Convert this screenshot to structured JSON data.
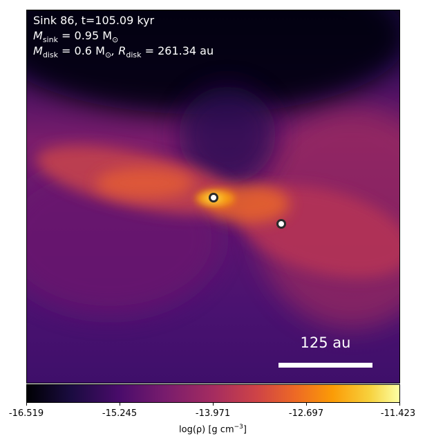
{
  "header": {
    "line1": "Sink 86, t=105.09 kyr",
    "m_sink_label": "M",
    "m_sink_sub": "sink",
    "m_sink_value": " = 0.95 M",
    "m_disk_label": "M",
    "m_disk_sub": "disk",
    "m_disk_value": " = 0.6 M",
    "r_disk_label": ", R",
    "r_disk_sub": "disk",
    "r_disk_value": " = 261.34 au",
    "sun_symbol": "⊙"
  },
  "scale_bar": {
    "label": "125 au"
  },
  "colorbar": {
    "ticks": [
      "-16.519",
      "-15.245",
      "-13.971",
      "-12.697",
      "-11.423"
    ],
    "label_prefix": "log(ρ) [g cm",
    "label_exp": "−3",
    "label_suffix": "]",
    "colormap": "inferno"
  },
  "sinks": [
    {
      "name": "primary sink",
      "color": "#ffffff"
    },
    {
      "name": "secondary sink",
      "color": "#ffffff"
    }
  ]
}
